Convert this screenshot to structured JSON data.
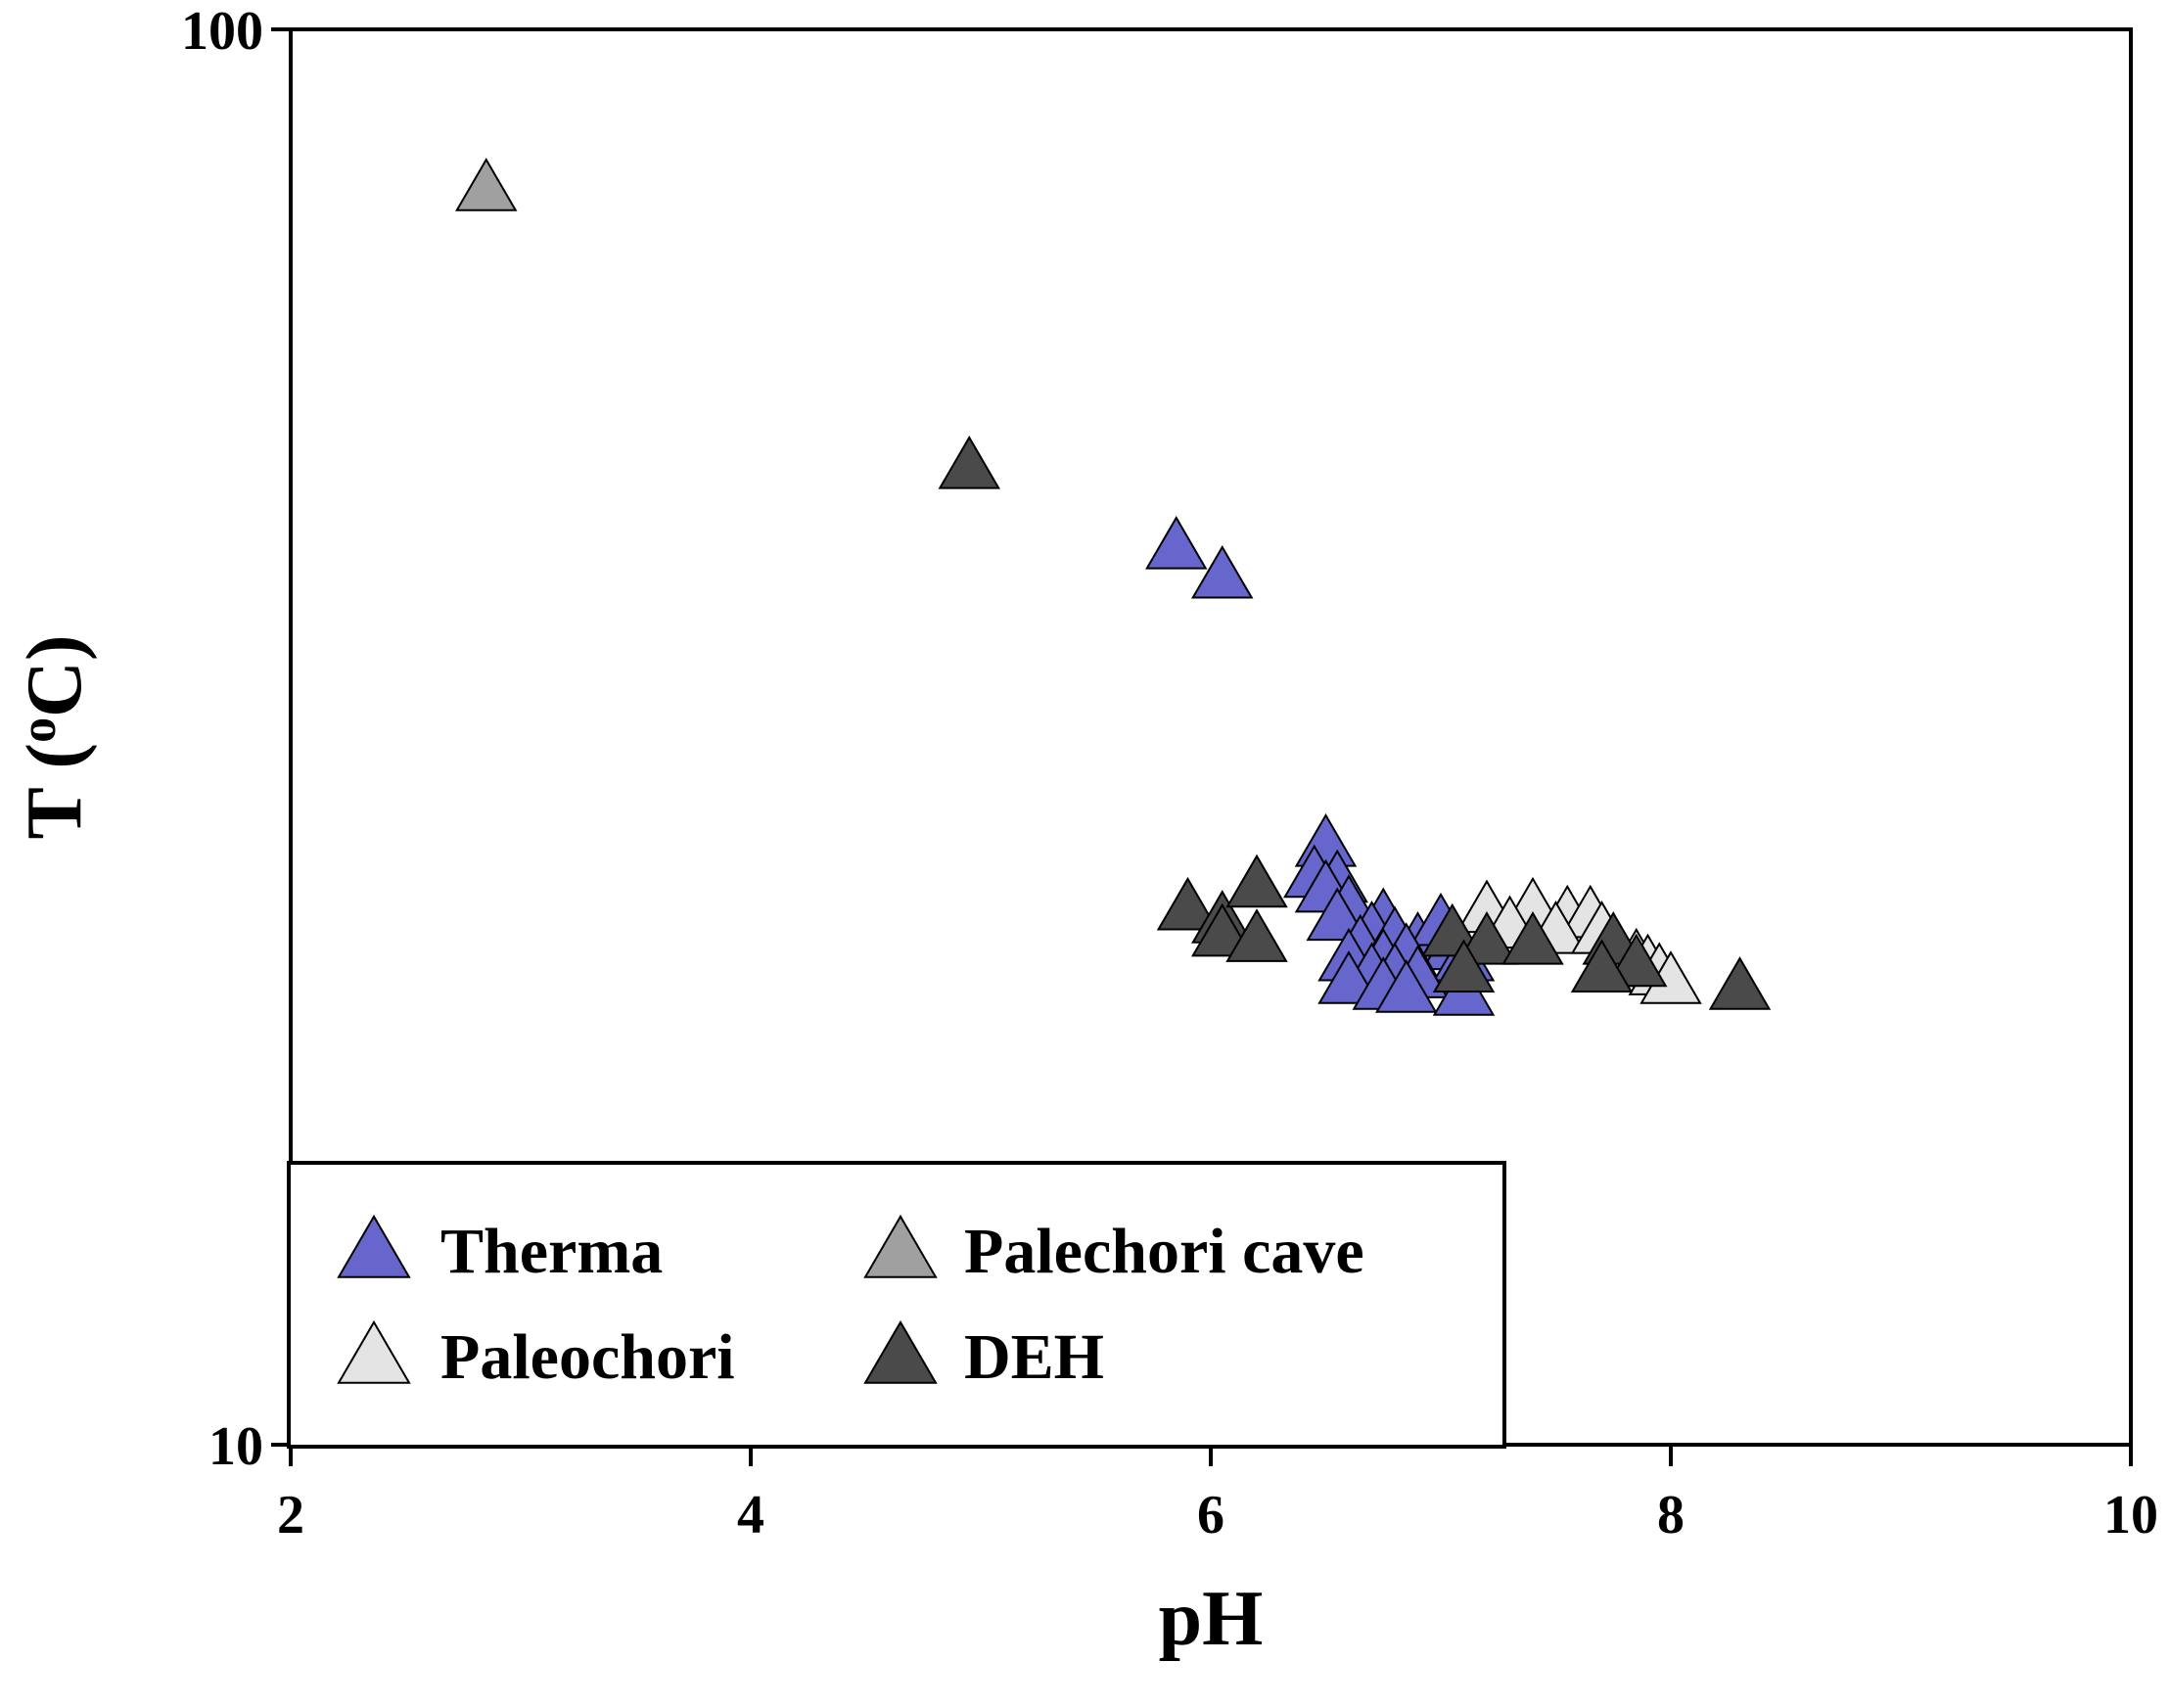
{
  "chart_data": {
    "type": "scatter",
    "xlabel": "pH",
    "ylabel": "T (oC)",
    "ylabel_parts": {
      "main": "T  (",
      "sup": "o",
      "unit": "C)"
    },
    "xlim": [
      2,
      10
    ],
    "ylim": [
      10,
      100
    ],
    "y_scale": "log",
    "x_ticks": [
      {
        "value": 2,
        "label": "2"
      },
      {
        "value": 4,
        "label": "4"
      },
      {
        "value": 6,
        "label": "6"
      },
      {
        "value": 8,
        "label": "8"
      },
      {
        "value": 10,
        "label": "10"
      }
    ],
    "y_ticks": [
      {
        "value": 10,
        "label": "10"
      },
      {
        "value": 100,
        "label": "100"
      }
    ],
    "grid": false,
    "legend_position": "bottom-left",
    "marker": "triangle",
    "series": [
      {
        "name": "Therma",
        "color": "#6666CC",
        "points": [
          [
            5.85,
            43.0
          ],
          [
            6.05,
            41.0
          ],
          [
            6.5,
            26.5
          ],
          [
            6.45,
            25.2
          ],
          [
            6.55,
            25.0
          ],
          [
            6.5,
            24.6
          ],
          [
            6.6,
            24.0
          ],
          [
            6.55,
            23.5
          ],
          [
            6.75,
            23.5
          ],
          [
            6.7,
            23.0
          ],
          [
            6.65,
            22.5
          ],
          [
            6.8,
            22.8
          ],
          [
            6.9,
            22.6
          ],
          [
            7.0,
            23.3
          ],
          [
            7.05,
            22.4
          ],
          [
            6.6,
            22.0
          ],
          [
            6.75,
            22.0
          ],
          [
            6.85,
            22.2
          ],
          [
            7.1,
            22.0
          ],
          [
            6.7,
            21.5
          ],
          [
            6.8,
            21.5
          ],
          [
            6.9,
            21.4
          ],
          [
            6.6,
            21.2
          ],
          [
            6.75,
            21.0
          ],
          [
            6.85,
            20.9
          ],
          [
            7.1,
            20.8
          ]
        ]
      },
      {
        "name": "Palechori cave",
        "color": "#A0A0A0",
        "points": [
          [
            2.85,
            77.0
          ]
        ]
      },
      {
        "name": "Paleochori",
        "color": "#E4E4E4",
        "points": [
          [
            7.2,
            23.8
          ],
          [
            7.4,
            23.9
          ],
          [
            7.55,
            23.6
          ],
          [
            7.65,
            23.6
          ],
          [
            7.3,
            23.2
          ],
          [
            7.5,
            23.0
          ],
          [
            7.7,
            23.0
          ],
          [
            7.85,
            22.0
          ],
          [
            7.9,
            21.8
          ],
          [
            7.95,
            21.5
          ],
          [
            8.0,
            21.2
          ]
        ]
      },
      {
        "name": "DEH",
        "color": "#4A4A4A",
        "points": [
          [
            4.95,
            49.0
          ],
          [
            5.9,
            23.9
          ],
          [
            6.05,
            23.4
          ],
          [
            6.2,
            24.8
          ],
          [
            6.05,
            22.9
          ],
          [
            6.2,
            22.7
          ],
          [
            7.05,
            22.9
          ],
          [
            7.2,
            22.6
          ],
          [
            7.4,
            22.6
          ],
          [
            7.75,
            22.6
          ],
          [
            7.85,
            21.8
          ],
          [
            7.7,
            21.6
          ],
          [
            7.1,
            21.6
          ],
          [
            8.3,
            21.0
          ]
        ]
      }
    ],
    "legend_order": [
      "Therma",
      "Palechori cave",
      "Paleochori",
      "DEH"
    ]
  }
}
